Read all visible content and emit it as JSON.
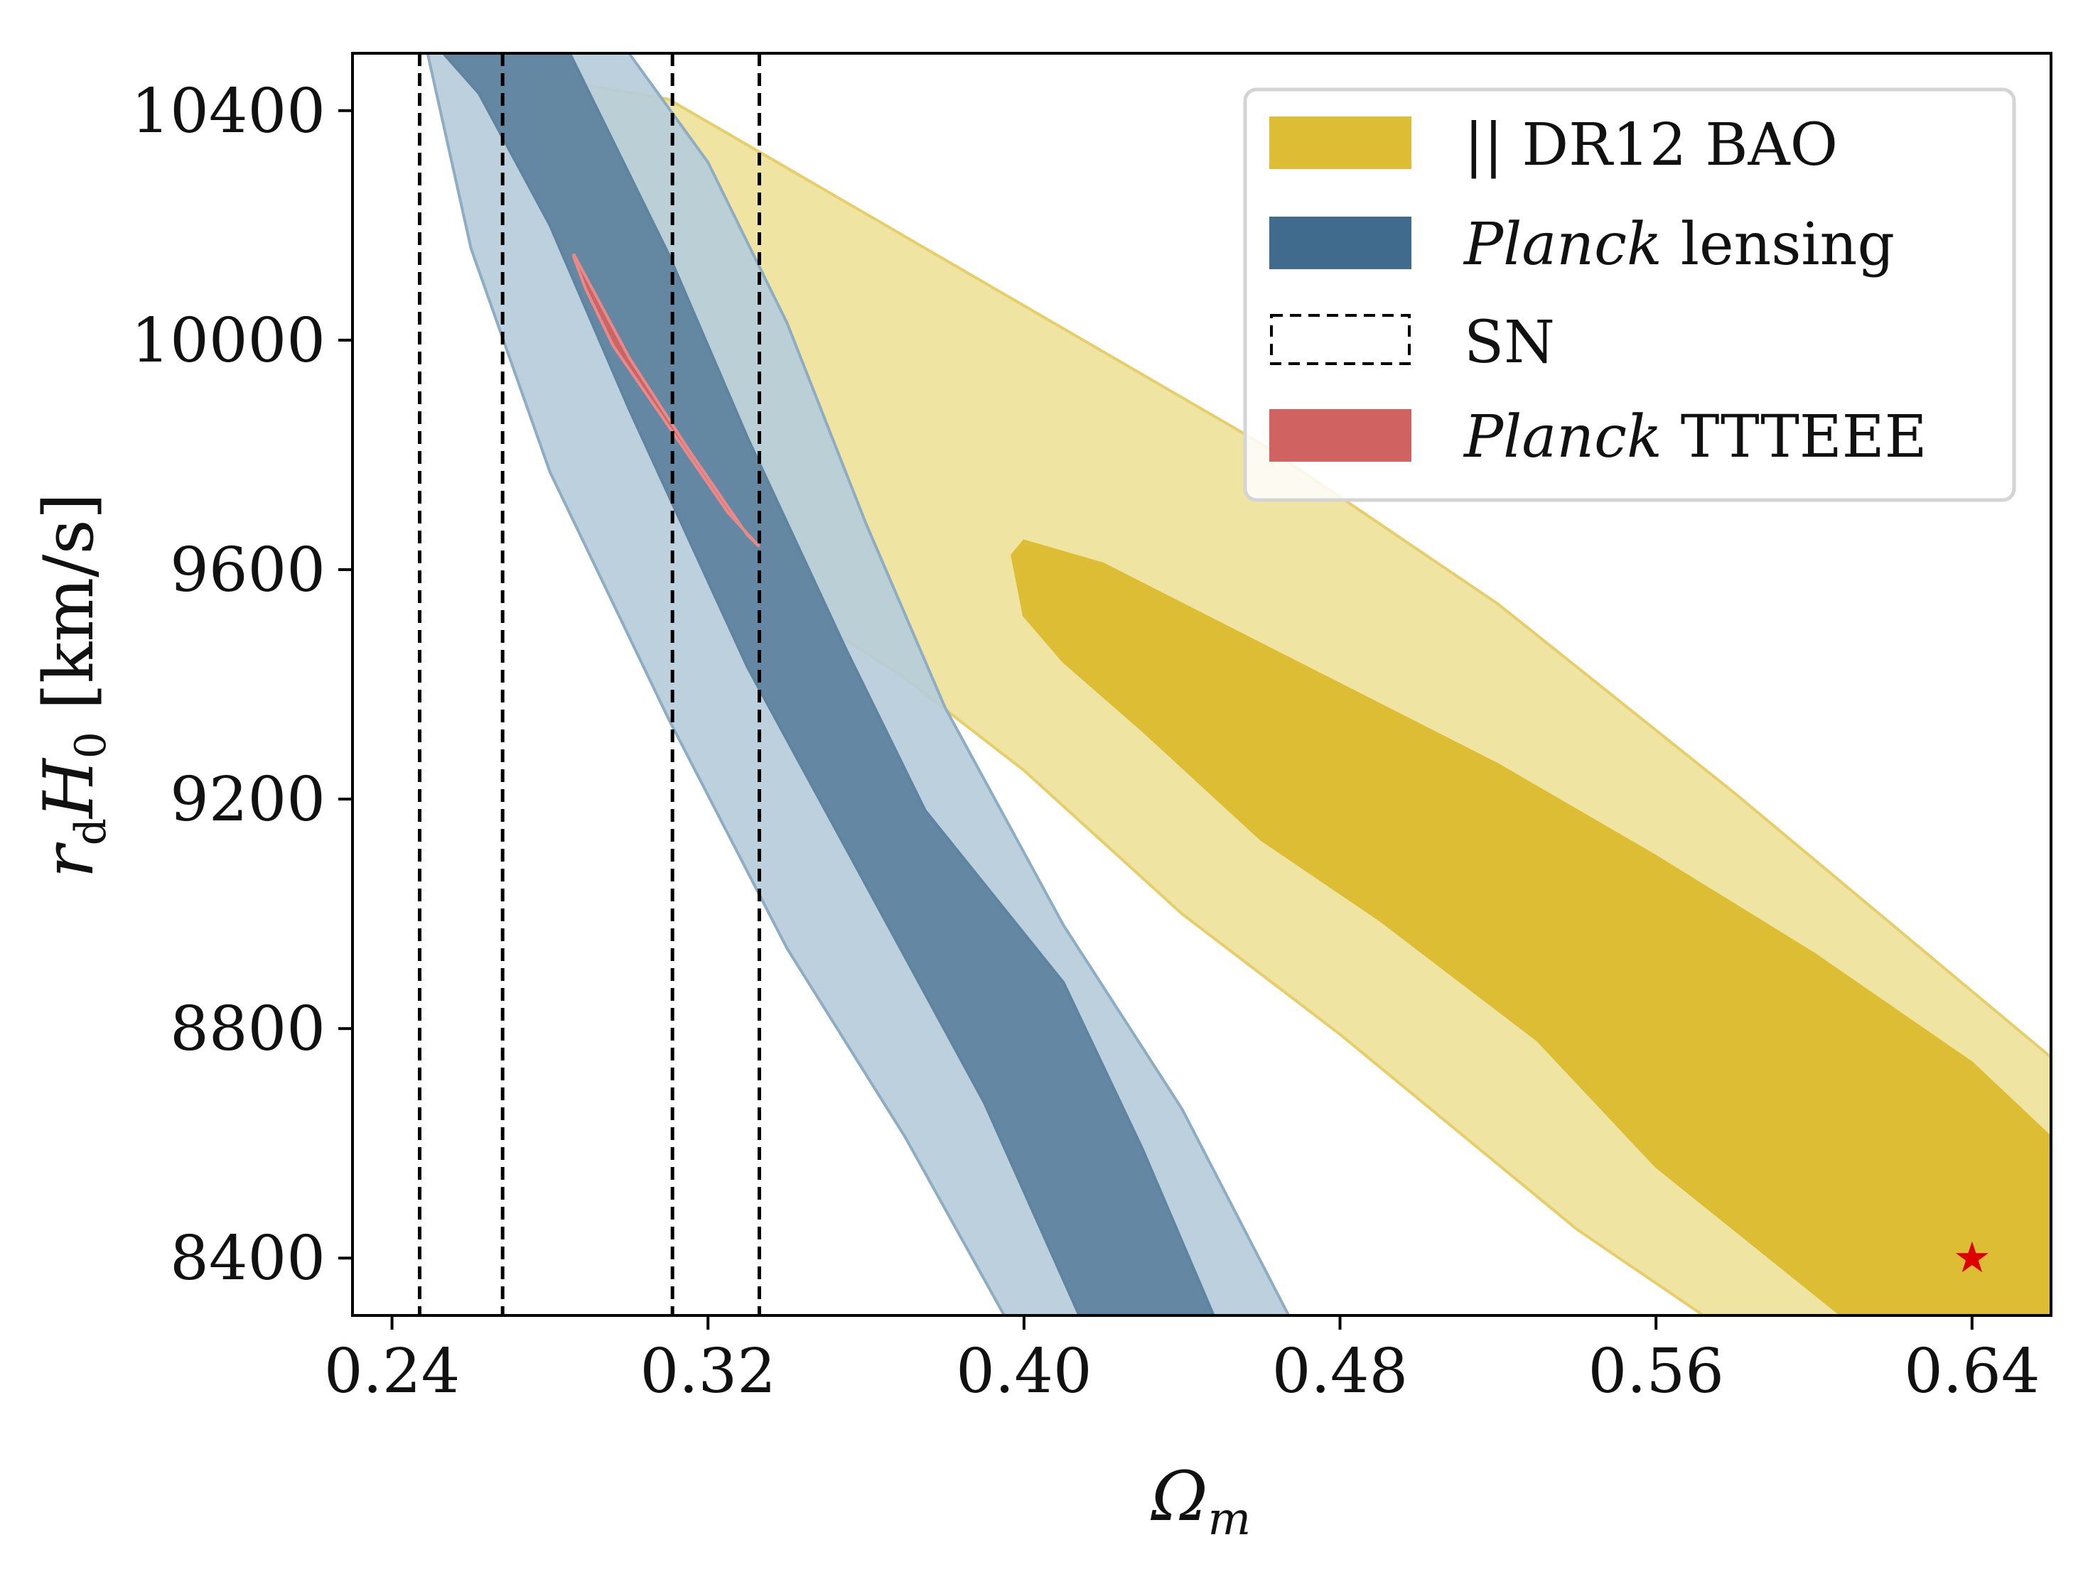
{
  "chart_data": {
    "type": "contour",
    "xlabel": "Ωm",
    "ylabel": "rdH0 [km/s]",
    "xlim": [
      0.23,
      0.66
    ],
    "ylim": [
      8300,
      10500
    ],
    "xticks": [
      "0.24",
      "0.32",
      "0.40",
      "0.48",
      "0.56",
      "0.64"
    ],
    "yticks": [
      "8400",
      "8800",
      "9200",
      "9600",
      "10000",
      "10400"
    ],
    "legend_position": "top-right",
    "colors": {
      "bao_inner": "#dcbd34",
      "bao_outer": "#f0e4a2",
      "lensing_inner": "#5f849f",
      "lensing_outer": "#b6cdda",
      "planck_tttEEE": "#d06262",
      "sn_lines": "#000000",
      "marker": "#dd0000"
    },
    "legend": [
      {
        "prefix": "|| ",
        "label": "DR12 BAO",
        "italic": "",
        "swatch": "bao"
      },
      {
        "prefix": "",
        "italic": "Planck",
        "label": " lensing",
        "swatch": "lensing"
      },
      {
        "prefix": "",
        "italic": "",
        "label": "SN",
        "swatch": "sn"
      },
      {
        "prefix": "",
        "italic": "Planck",
        "label": " TTTEEE",
        "swatch": "planck"
      }
    ],
    "series": [
      {
        "key": "bao_outer",
        "points": [
          [
            0.276,
            10460
          ],
          [
            0.31,
            10420
          ],
          [
            0.34,
            10300
          ],
          [
            0.4,
            10060
          ],
          [
            0.46,
            9820
          ],
          [
            0.52,
            9540
          ],
          [
            0.58,
            9210
          ],
          [
            0.62,
            8980
          ],
          [
            0.66,
            8750
          ],
          [
            0.66,
            8300
          ],
          [
            0.572,
            8300
          ],
          [
            0.54,
            8450
          ],
          [
            0.48,
            8790
          ],
          [
            0.44,
            9000
          ],
          [
            0.4,
            9250
          ],
          [
            0.37,
            9410
          ],
          [
            0.35,
            9500
          ],
          [
            0.335,
            9650
          ],
          [
            0.32,
            9800
          ],
          [
            0.3,
            9970
          ],
          [
            0.282,
            10180
          ],
          [
            0.276,
            10350
          ]
        ]
      },
      {
        "key": "bao_inner",
        "points": [
          [
            0.397,
            9625
          ],
          [
            0.4,
            9650
          ],
          [
            0.42,
            9610
          ],
          [
            0.46,
            9470
          ],
          [
            0.52,
            9260
          ],
          [
            0.56,
            9100
          ],
          [
            0.6,
            8930
          ],
          [
            0.64,
            8740
          ],
          [
            0.66,
            8610
          ],
          [
            0.66,
            8300
          ],
          [
            0.607,
            8300
          ],
          [
            0.56,
            8560
          ],
          [
            0.53,
            8780
          ],
          [
            0.49,
            8990
          ],
          [
            0.46,
            9130
          ],
          [
            0.43,
            9320
          ],
          [
            0.41,
            9440
          ],
          [
            0.4,
            9520
          ]
        ]
      },
      {
        "key": "lensing_outer",
        "points": [
          [
            0.249,
            10500
          ],
          [
            0.3,
            10500
          ],
          [
            0.32,
            10310
          ],
          [
            0.34,
            10030
          ],
          [
            0.36,
            9680
          ],
          [
            0.38,
            9360
          ],
          [
            0.41,
            8980
          ],
          [
            0.44,
            8660
          ],
          [
            0.467,
            8300
          ],
          [
            0.395,
            8300
          ],
          [
            0.37,
            8610
          ],
          [
            0.34,
            8940
          ],
          [
            0.31,
            9340
          ],
          [
            0.28,
            9770
          ],
          [
            0.26,
            10160
          ]
        ]
      },
      {
        "key": "lensing_inner",
        "points": [
          [
            0.253,
            10500
          ],
          [
            0.285,
            10500
          ],
          [
            0.31,
            10150
          ],
          [
            0.33,
            9830
          ],
          [
            0.355,
            9460
          ],
          [
            0.375,
            9180
          ],
          [
            0.41,
            8880
          ],
          [
            0.43,
            8590
          ],
          [
            0.448,
            8300
          ],
          [
            0.414,
            8300
          ],
          [
            0.39,
            8670
          ],
          [
            0.36,
            9050
          ],
          [
            0.33,
            9430
          ],
          [
            0.3,
            9880
          ],
          [
            0.28,
            10200
          ],
          [
            0.262,
            10430
          ]
        ]
      },
      {
        "key": "planck_tttEEE",
        "points": [
          [
            0.286,
            10150
          ],
          [
            0.3,
            9970
          ],
          [
            0.315,
            9810
          ],
          [
            0.33,
            9660
          ],
          [
            0.333,
            9640
          ],
          [
            0.325,
            9700
          ],
          [
            0.31,
            9850
          ],
          [
            0.296,
            9990
          ],
          [
            0.289,
            10090
          ],
          [
            0.286,
            10145
          ]
        ]
      }
    ],
    "sn_lines_x": [
      0.247,
      0.268,
      0.311,
      0.333
    ],
    "marker": {
      "x": 0.64,
      "y": 8400,
      "symbol": "★"
    }
  }
}
